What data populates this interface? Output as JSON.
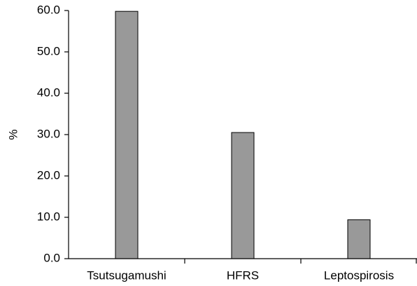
{
  "chart_data": {
    "type": "bar",
    "categories": [
      "Tsutsugamushi",
      "HFRS",
      "Leptospirosis"
    ],
    "values": [
      59.8,
      30.5,
      9.4
    ],
    "title": "",
    "xlabel": "",
    "ylabel": "%",
    "ylim": [
      0,
      60
    ],
    "yticks": [
      "0.0",
      "10.0",
      "20.0",
      "30.0",
      "40.0",
      "50.0",
      "60.0"
    ],
    "grid": false,
    "legend": "none",
    "bar_color": "#999999",
    "bar_stroke": "#000000"
  }
}
